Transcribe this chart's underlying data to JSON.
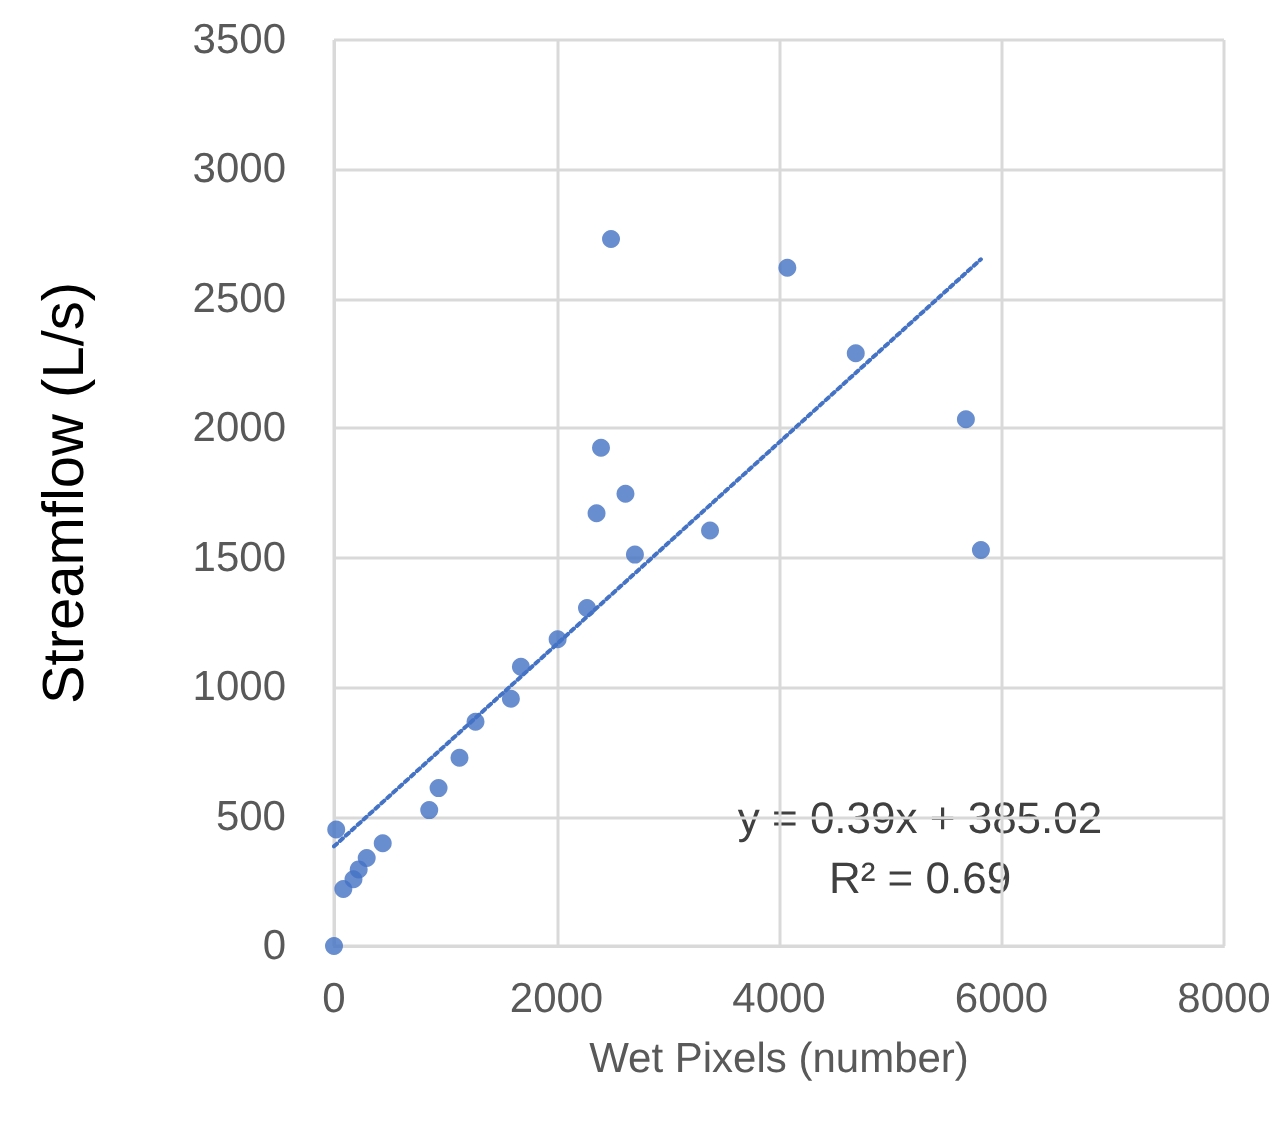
{
  "chart_data": {
    "type": "scatter",
    "xlabel": "Wet Pixels (number)",
    "ylabel": "Streamflow (L/s)",
    "xlim": [
      0,
      8000
    ],
    "xticks": [
      0,
      2000,
      4000,
      6000,
      8000
    ],
    "ylim": [
      0,
      3500
    ],
    "yticks": [
      0,
      500,
      1000,
      1500,
      2000,
      2500,
      3000,
      3500
    ],
    "grid": true,
    "marker": "circle",
    "series": [
      {
        "color": "#4472c4",
        "x": [
          0,
          20,
          84,
          175,
          222,
          294,
          438,
          856,
          940,
          1128,
          1272,
          1590,
          1680,
          2010,
          2274,
          2490,
          4075,
          2400,
          2620,
          2360,
          2705,
          3380,
          4690,
          5680,
          5815
        ],
        "values": [
          0,
          450,
          220,
          258,
          296,
          340,
          397,
          525,
          610,
          727,
          866,
          955,
          1079,
          1185,
          1306,
          2731,
          2620,
          1925,
          1747,
          1672,
          1512,
          1605,
          2290,
          2035,
          1530
        ]
      },
      {
        "type": "line",
        "color": "#4472c4",
        "line_style": "dotted",
        "marker": "none",
        "x": [
          0,
          5815
        ],
        "values": [
          385,
          2653
        ]
      }
    ],
    "annotations": [
      "y = 0.39x + 385.02",
      "R² = 0.69"
    ]
  }
}
